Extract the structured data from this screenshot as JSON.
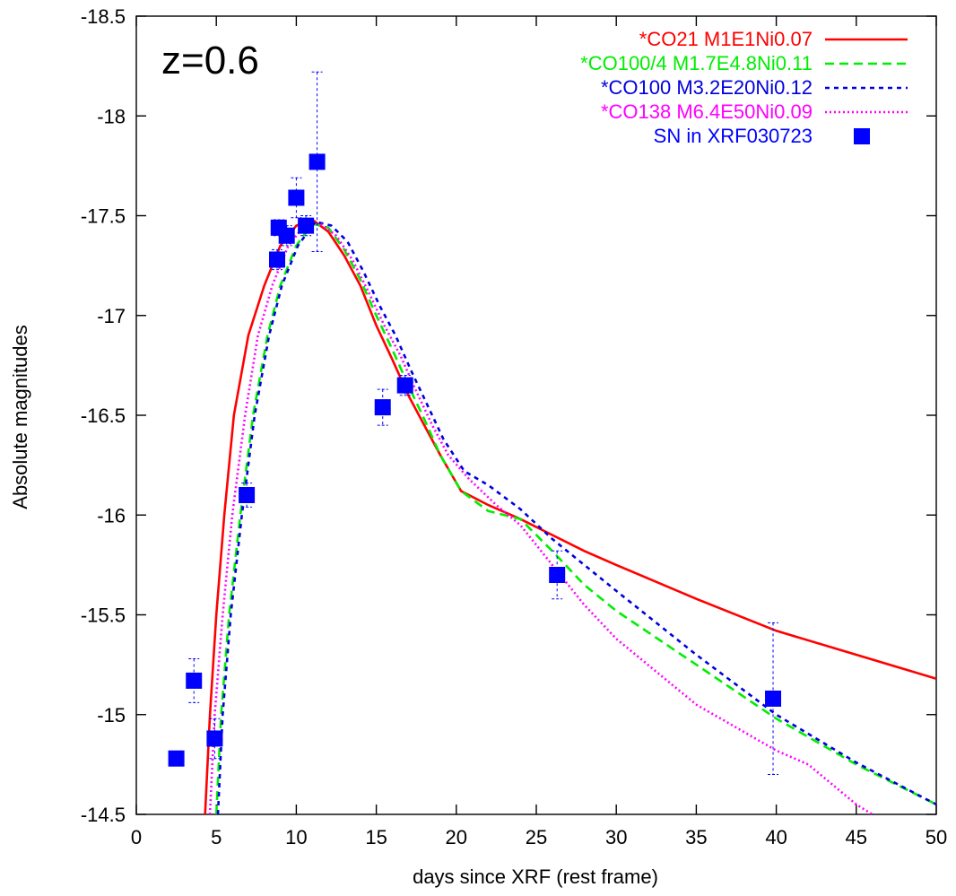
{
  "chart_data": {
    "type": "line",
    "title": "z=0.6",
    "xlabel": "days since XRF (rest frame)",
    "ylabel": "Absolute magnitudes",
    "xlim": [
      0,
      50
    ],
    "ylim": [
      -14.5,
      -18.5
    ],
    "y_inverted": true,
    "xticks": [
      0,
      5,
      10,
      15,
      20,
      25,
      30,
      35,
      40,
      45,
      50
    ],
    "yticks": [
      -14.5,
      -15,
      -15.5,
      -16,
      -16.5,
      -17,
      -17.5,
      -18,
      -18.5
    ],
    "legend_position": "top-right",
    "grid": false,
    "series": [
      {
        "name": "*CO21 M1E1Ni0.07",
        "color": "#ff0000",
        "dash": "solid",
        "points": [
          [
            4.3,
            -14.5
          ],
          [
            4.6,
            -15.0
          ],
          [
            5.0,
            -15.5
          ],
          [
            5.5,
            -16.0
          ],
          [
            6.1,
            -16.5
          ],
          [
            7.0,
            -16.9
          ],
          [
            8.0,
            -17.15
          ],
          [
            9.0,
            -17.35
          ],
          [
            10.0,
            -17.45
          ],
          [
            11.0,
            -17.48
          ],
          [
            12.0,
            -17.42
          ],
          [
            13.0,
            -17.3
          ],
          [
            14.0,
            -17.15
          ],
          [
            15.0,
            -16.95
          ],
          [
            16.0,
            -16.78
          ],
          [
            17.0,
            -16.6
          ],
          [
            18.0,
            -16.45
          ],
          [
            19.0,
            -16.3
          ],
          [
            20.3,
            -16.12
          ],
          [
            22.0,
            -16.05
          ],
          [
            24.0,
            -15.98
          ],
          [
            26.0,
            -15.9
          ],
          [
            28.0,
            -15.82
          ],
          [
            30.0,
            -15.75
          ],
          [
            35.0,
            -15.58
          ],
          [
            40.0,
            -15.42
          ],
          [
            45.0,
            -15.3
          ],
          [
            50.0,
            -15.18
          ]
        ]
      },
      {
        "name": "*CO100/4 M1.7E4.8Ni0.11",
        "color": "#00ee00",
        "dash": "long",
        "points": [
          [
            5.0,
            -14.5
          ],
          [
            5.3,
            -15.0
          ],
          [
            5.8,
            -15.5
          ],
          [
            6.5,
            -16.0
          ],
          [
            7.3,
            -16.5
          ],
          [
            8.2,
            -16.9
          ],
          [
            9.0,
            -17.15
          ],
          [
            10.0,
            -17.35
          ],
          [
            11.0,
            -17.46
          ],
          [
            12.0,
            -17.44
          ],
          [
            13.0,
            -17.33
          ],
          [
            14.0,
            -17.18
          ],
          [
            15.0,
            -17.0
          ],
          [
            16.0,
            -16.83
          ],
          [
            17.0,
            -16.65
          ],
          [
            18.0,
            -16.48
          ],
          [
            19.0,
            -16.3
          ],
          [
            20.3,
            -16.12
          ],
          [
            22.0,
            -16.02
          ],
          [
            24.0,
            -15.98
          ],
          [
            26.0,
            -15.82
          ],
          [
            28.0,
            -15.65
          ],
          [
            30.0,
            -15.52
          ],
          [
            35.0,
            -15.25
          ],
          [
            40.0,
            -14.98
          ],
          [
            45.0,
            -14.75
          ],
          [
            50.0,
            -14.55
          ]
        ]
      },
      {
        "name": "*CO100 M3.2E20Ni0.12",
        "color": "#0000dd",
        "dash": "short",
        "points": [
          [
            5.1,
            -14.5
          ],
          [
            5.4,
            -15.0
          ],
          [
            5.9,
            -15.5
          ],
          [
            6.6,
            -16.0
          ],
          [
            7.4,
            -16.5
          ],
          [
            8.3,
            -16.9
          ],
          [
            9.1,
            -17.15
          ],
          [
            10.1,
            -17.35
          ],
          [
            11.2,
            -17.47
          ],
          [
            12.2,
            -17.45
          ],
          [
            13.2,
            -17.37
          ],
          [
            14.2,
            -17.22
          ],
          [
            15.2,
            -17.05
          ],
          [
            16.2,
            -16.9
          ],
          [
            17.2,
            -16.72
          ],
          [
            18.2,
            -16.55
          ],
          [
            19.2,
            -16.38
          ],
          [
            20.5,
            -16.22
          ],
          [
            22.0,
            -16.15
          ],
          [
            24.0,
            -16.03
          ],
          [
            26.0,
            -15.88
          ],
          [
            28.0,
            -15.75
          ],
          [
            30.0,
            -15.62
          ],
          [
            35.0,
            -15.3
          ],
          [
            40.0,
            -15.0
          ],
          [
            45.0,
            -14.76
          ],
          [
            50.0,
            -14.55
          ]
        ]
      },
      {
        "name": "*CO138 M6.4E50Ni0.09",
        "color": "#ff00ff",
        "dash": "dotted",
        "points": [
          [
            4.6,
            -14.5
          ],
          [
            4.9,
            -15.0
          ],
          [
            5.4,
            -15.5
          ],
          [
            6.0,
            -16.0
          ],
          [
            6.8,
            -16.5
          ],
          [
            7.6,
            -16.9
          ],
          [
            8.5,
            -17.15
          ],
          [
            9.5,
            -17.35
          ],
          [
            10.5,
            -17.45
          ],
          [
            11.5,
            -17.46
          ],
          [
            12.5,
            -17.4
          ],
          [
            13.5,
            -17.28
          ],
          [
            14.5,
            -17.12
          ],
          [
            15.5,
            -16.95
          ],
          [
            16.5,
            -16.8
          ],
          [
            17.5,
            -16.62
          ],
          [
            18.5,
            -16.45
          ],
          [
            19.5,
            -16.3
          ],
          [
            20.8,
            -16.18
          ],
          [
            22.5,
            -16.05
          ],
          [
            24.0,
            -15.95
          ],
          [
            26.0,
            -15.75
          ],
          [
            28.0,
            -15.55
          ],
          [
            30.0,
            -15.38
          ],
          [
            35.0,
            -15.05
          ],
          [
            40.0,
            -14.82
          ],
          [
            42.0,
            -14.75
          ],
          [
            45.0,
            -14.55
          ],
          [
            46.0,
            -14.5
          ]
        ]
      },
      {
        "name": "SN in XRF030723",
        "color": "#0000ff",
        "type": "scatter",
        "marker": "square",
        "points": [
          {
            "x": 2.5,
            "y": -14.78,
            "err": 0.03
          },
          {
            "x": 3.6,
            "y": -15.17,
            "err": 0.11
          },
          {
            "x": 4.9,
            "y": -14.88,
            "err": 0.1
          },
          {
            "x": 6.9,
            "y": -16.1,
            "err": 0.06
          },
          {
            "x": 8.8,
            "y": -17.28,
            "err": 0.05
          },
          {
            "x": 8.9,
            "y": -17.44,
            "err": 0.04
          },
          {
            "x": 9.4,
            "y": -17.4,
            "err": 0.05
          },
          {
            "x": 10.0,
            "y": -17.59,
            "err": 0.1
          },
          {
            "x": 10.6,
            "y": -17.45,
            "err": 0.05
          },
          {
            "x": 11.3,
            "y": -17.77,
            "err": 0.45
          },
          {
            "x": 15.4,
            "y": -16.54,
            "err": 0.09
          },
          {
            "x": 16.8,
            "y": -16.65,
            "err": 0.05
          },
          {
            "x": 26.3,
            "y": -15.7,
            "err": 0.12
          },
          {
            "x": 39.8,
            "y": -15.08,
            "err": 0.38
          }
        ]
      }
    ]
  }
}
